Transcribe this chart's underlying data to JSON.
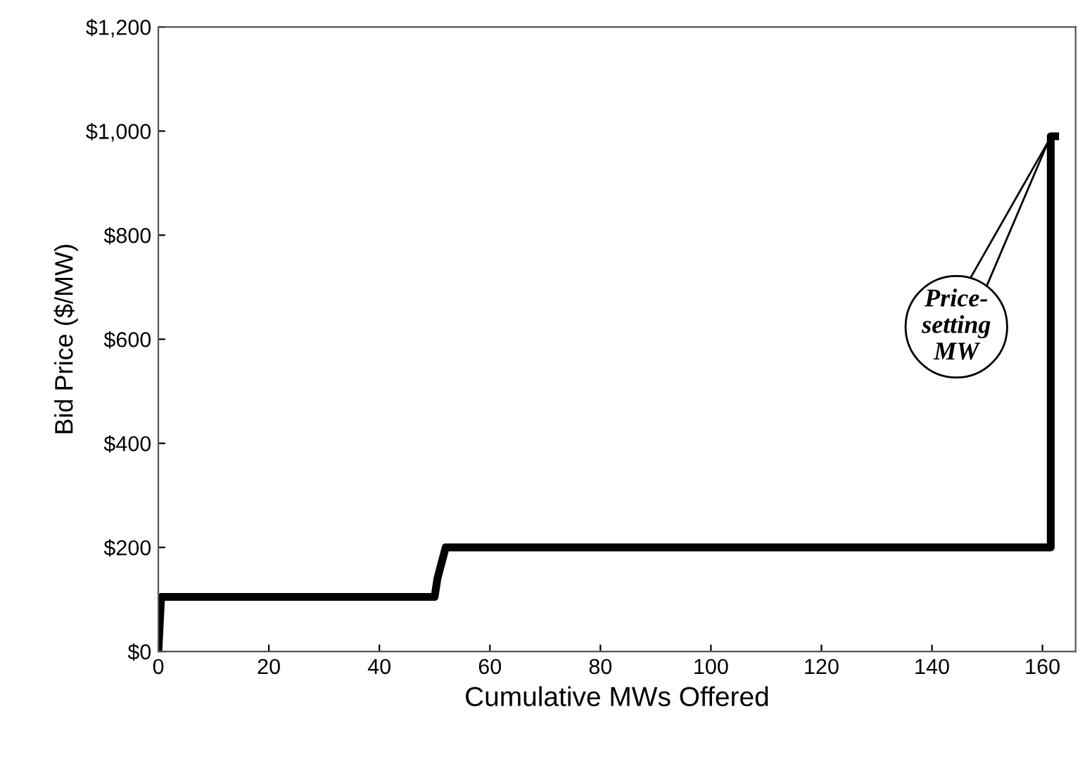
{
  "chart_data": {
    "type": "line",
    "xlabel": "Cumulative MWs Offered",
    "ylabel": "Bid Price ($/MW)",
    "series": [
      {
        "color": "#000000",
        "x": [
          0,
          0.5,
          50,
          50.5,
          52,
          161.5,
          161.5,
          163
        ],
        "values": [
          0,
          105,
          105,
          140,
          200,
          200,
          990,
          990
        ]
      }
    ],
    "xlim": [
      0,
      166
    ],
    "xticks": [
      0,
      20,
      40,
      60,
      80,
      100,
      120,
      140,
      160
    ],
    "ylim": [
      0,
      1200
    ],
    "yticks": [
      {
        "value": 0,
        "label": "$0"
      },
      {
        "value": 200,
        "label": "$200"
      },
      {
        "value": 400,
        "label": "$400"
      },
      {
        "value": 600,
        "label": "$600"
      },
      {
        "value": 800,
        "label": "$800"
      },
      {
        "value": 1000,
        "label": "$1,000"
      },
      {
        "value": 1200,
        "label": "$1,200"
      }
    ],
    "annotations": [
      "Price-\nsetting\nMW"
    ],
    "grid": false,
    "legend": false,
    "marker": "none",
    "line_style": "solid"
  }
}
